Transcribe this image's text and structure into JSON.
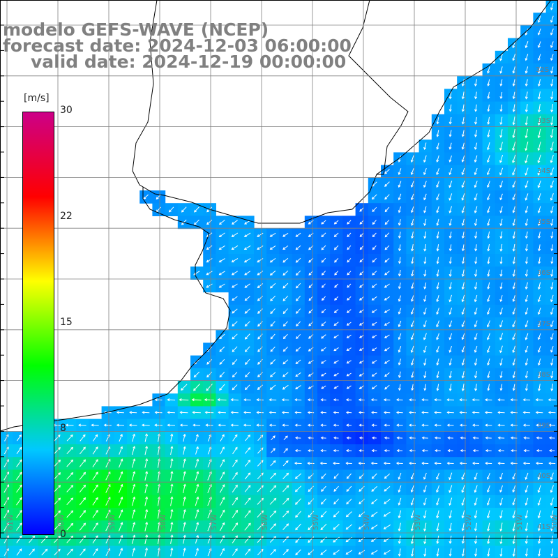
{
  "title": {
    "line1": "modelo GEFS-WAVE (NCEP)",
    "line2": "forecast date: 2024-12-03 06:00:00",
    "line3": "valid date: 2024-12-19 00:00:00"
  },
  "colorbar": {
    "unit": "[m/s]",
    "ticks": [
      "30",
      "22",
      "15",
      "8",
      "0"
    ],
    "tick_values": [
      30,
      22,
      15,
      8,
      0
    ],
    "colors": [
      "#0000ff",
      "#00c8ff",
      "#00ff00",
      "#ffff00",
      "#ff0000",
      "#cc0088"
    ]
  },
  "grid": {
    "lat_labels": [
      "32S",
      "33S",
      "34S",
      "35S",
      "36S",
      "37S",
      "38S",
      "39S",
      "40S",
      "41S"
    ],
    "lon_labels": [
      "61W",
      "60W",
      "59W",
      "58W",
      "57W",
      "56W",
      "55W",
      "54W",
      "53W",
      "52W",
      "51W",
      "50W"
    ]
  },
  "colors": {
    "land": "#ffffff",
    "coastline": "#000000",
    "gridline": "#808080",
    "arrow": "#ffffff",
    "label_gray": "#808080"
  }
}
